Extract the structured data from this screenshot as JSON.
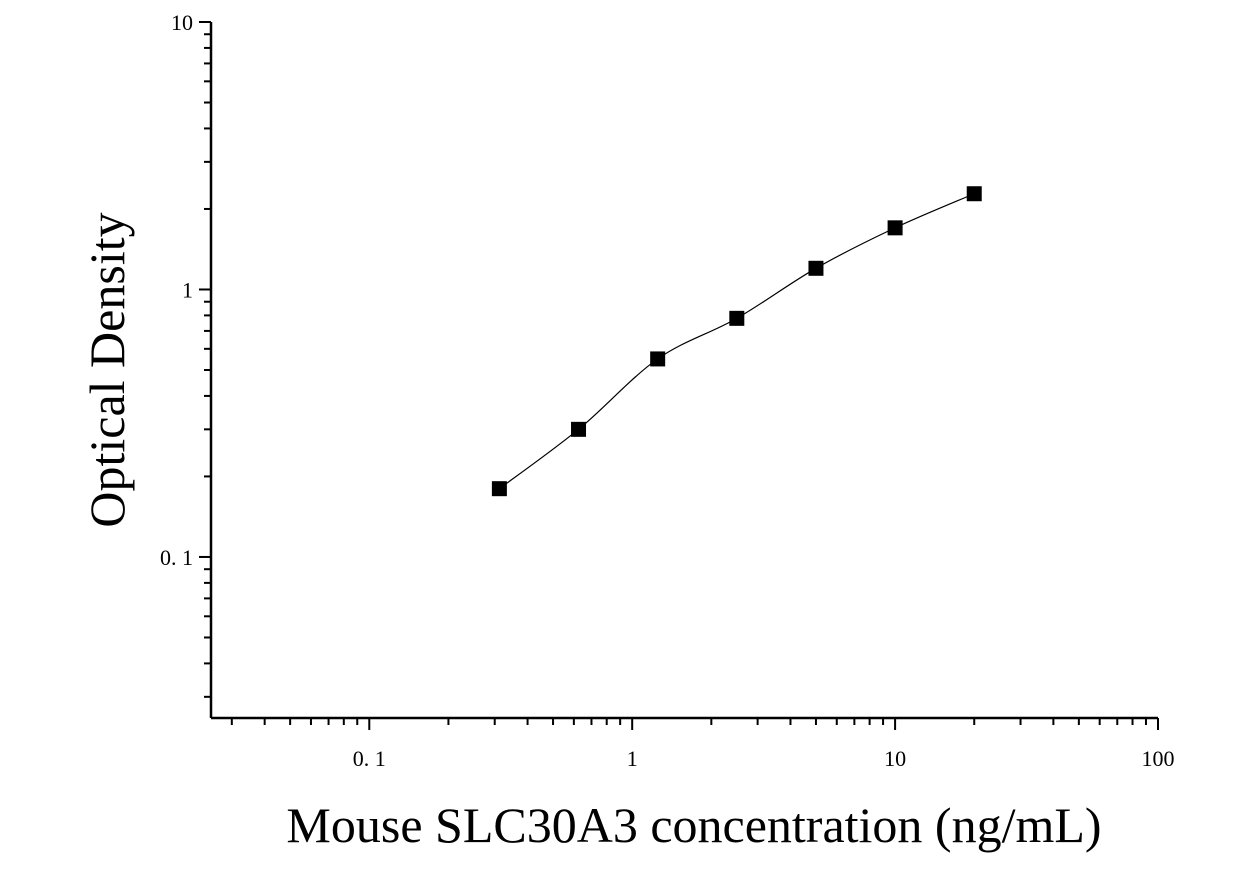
{
  "chart_data": {
    "type": "scatter",
    "xlabel": "Mouse SLC30A3 concentration (ng/mL)",
    "ylabel": "Optical Density",
    "xscale": "log",
    "yscale": "log",
    "xlim": [
      0.025,
      100
    ],
    "ylim": [
      0.025,
      10
    ],
    "x_ticks": [
      {
        "value": 0.1,
        "label": "0. 1"
      },
      {
        "value": 1,
        "label": "1"
      },
      {
        "value": 10,
        "label": "10"
      },
      {
        "value": 100,
        "label": "100"
      }
    ],
    "y_ticks": [
      {
        "value": 0.1,
        "label": "0. 1"
      },
      {
        "value": 1,
        "label": "1"
      },
      {
        "value": 10,
        "label": "10"
      }
    ],
    "grid": false,
    "legend": "none",
    "marker": "square",
    "fit_curve": true,
    "series": [
      {
        "x": [
          0.3125,
          0.625,
          1.25,
          2.5,
          5,
          10,
          20
        ],
        "y": [
          0.18,
          0.3,
          0.55,
          0.78,
          1.2,
          1.7,
          2.28
        ]
      }
    ]
  }
}
